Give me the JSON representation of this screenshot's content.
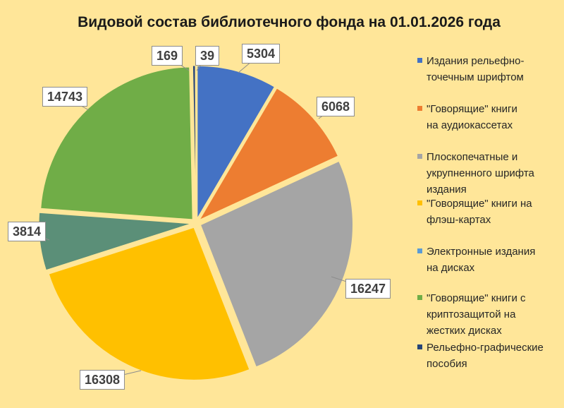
{
  "chart_data": {
    "type": "pie",
    "title": "Видовой состав библиотечного фонда на 01.01.2026 года",
    "legend_position": "right",
    "slices": [
      {
        "label": "Издания рельефно-точечным шрифтом",
        "value": 5304,
        "color": "#4472c4"
      },
      {
        "label": "\"Говорящие\" книги на аудиокассетах",
        "value": 6068,
        "color": "#ed7d31"
      },
      {
        "label": "Плоскопечатные и укрупненного шрифта издания",
        "value": 16247,
        "color": "#a5a5a5"
      },
      {
        "label": "\"Говорящие\" книги на флэш-картах",
        "value": 16308,
        "color": "#ffc000"
      },
      {
        "label": "Электронные издания на дисках",
        "value": 3814,
        "color": "#5b9bd5"
      },
      {
        "label": "\"Говорящие\" книги с криптозащитой на жестких дисках",
        "value": 14743,
        "color": "#70ad47"
      },
      {
        "label": "Рельефно-графические пособия",
        "value": 169,
        "color": "#264478"
      },
      {
        "label": "",
        "value": 39,
        "color": "#636363"
      }
    ]
  },
  "legend": {
    "items": [
      {
        "lines": [
          "Издания рельефно-",
          "точечным шрифтом"
        ],
        "color": "#4472c4"
      },
      {
        "lines": [
          "\"Говорящие\" книги",
          "на аудиокассетах"
        ],
        "color": "#ed7d31"
      },
      {
        "lines": [
          "Плоскопечатные и",
          "укрупненного шрифта",
          "издания"
        ],
        "color": "#a5a5a5"
      },
      {
        "lines": [
          "\"Говорящие\" книги на",
          "флэш-картах"
        ],
        "color": "#ffc000"
      },
      {
        "lines": [
          "Электронные издания",
          "на дисках"
        ],
        "color": "#5b9bd5"
      },
      {
        "lines": [
          "\"Говорящие\" книги с",
          "криптозащитой на",
          "жестких дисках"
        ],
        "color": "#70ad47"
      },
      {
        "lines": [
          "Рельефно-графические",
          "пособия"
        ],
        "color": "#264478"
      }
    ]
  },
  "slice_colors": {
    "wedge_fill_override": {
      "4": "#5b8f78"
    }
  }
}
